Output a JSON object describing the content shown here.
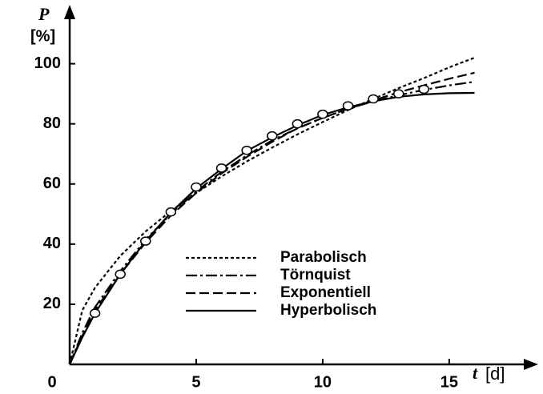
{
  "chart_data": {
    "type": "line",
    "y_label": "P",
    "y_unit": "[%]",
    "x_label": "t",
    "x_unit": "[d]",
    "x": [
      0,
      0.5,
      1,
      2,
      3,
      4,
      5,
      6,
      7,
      8,
      9,
      10,
      11,
      12,
      13,
      14,
      15,
      16
    ],
    "series": [
      {
        "name": "Parabolisch",
        "color": "#000000",
        "dash": "4 3",
        "values": [
          0,
          18,
          25.5,
          36.1,
          44.2,
          51,
          57,
          62.5,
          67.5,
          72.1,
          76.5,
          80.6,
          84.6,
          88.3,
          91.9,
          95.2,
          98.8,
          102
        ]
      },
      {
        "name": "Törnquist",
        "color": "#000000",
        "dash": "14 4 3 4",
        "values": [
          0,
          10.5,
          19,
          31,
          41.5,
          50,
          57.5,
          64,
          69.5,
          74.5,
          78.5,
          82,
          85,
          87.5,
          89.5,
          91.3,
          92.8,
          94
        ]
      },
      {
        "name": "Exponentiell",
        "color": "#000000",
        "dash": "12 5",
        "values": [
          0,
          9.5,
          18,
          30,
          40.5,
          49.5,
          57,
          63.5,
          69,
          74,
          78.5,
          82,
          85,
          87.8,
          90.5,
          92.8,
          95,
          97
        ]
      },
      {
        "name": "Hyperbolisch",
        "color": "#000000",
        "dash": "none",
        "values": [
          0,
          9,
          17,
          30,
          41,
          50.5,
          58.5,
          65,
          71,
          75.5,
          79.5,
          83,
          85.5,
          87.5,
          89,
          89.8,
          90.2,
          90.3
        ]
      }
    ],
    "points": {
      "x": [
        1,
        2,
        3,
        4,
        5,
        6,
        7,
        8,
        9,
        10,
        11,
        12,
        13,
        14
      ],
      "y": [
        17,
        30,
        41,
        50.7,
        59,
        65.3,
        71.2,
        76,
        80,
        83.2,
        86,
        88.3,
        90,
        91.5
      ]
    },
    "xlim": [
      0,
      18.2
    ],
    "ylim": [
      0,
      118
    ],
    "xticks": [
      0,
      5,
      10,
      15
    ],
    "yticks": [
      20,
      40,
      60,
      80,
      100
    ]
  }
}
